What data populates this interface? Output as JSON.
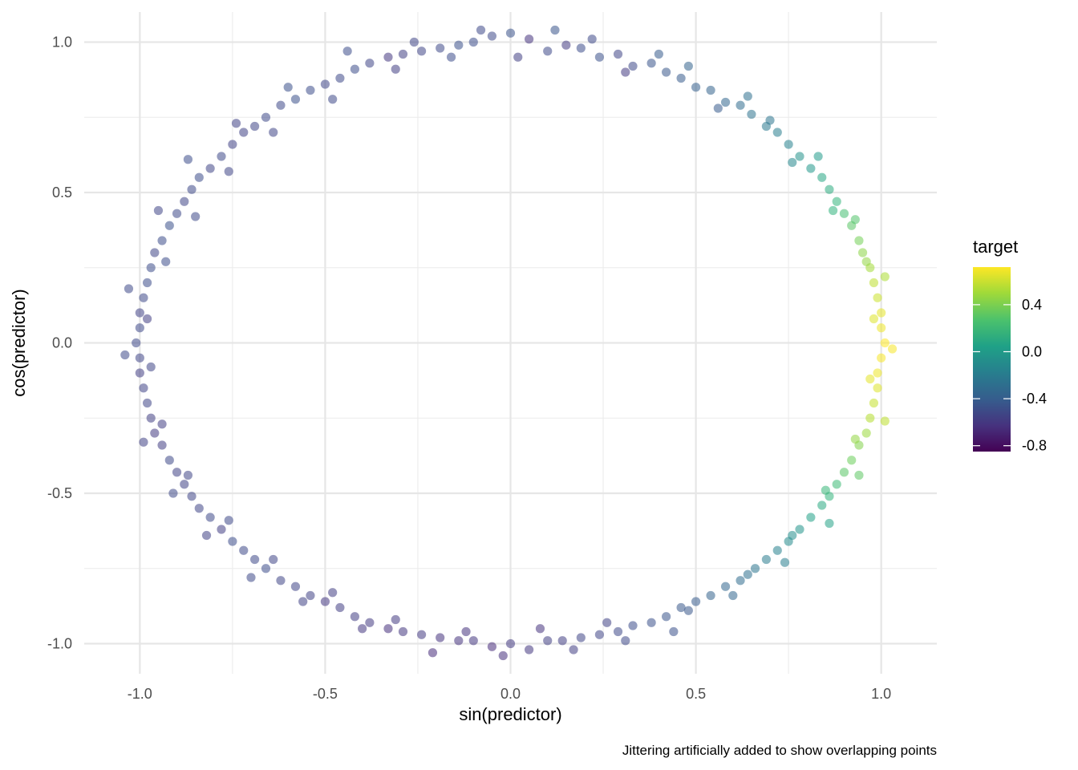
{
  "chart_data": {
    "type": "scatter",
    "title": "",
    "xlabel": "sin(predictor)",
    "ylabel": "cos(predictor)",
    "caption": "Jittering artificially added to show overlapping points",
    "xlim": [
      -1.15,
      1.15
    ],
    "ylim": [
      -1.1,
      1.1
    ],
    "x_ticks": [
      -1.0,
      -0.5,
      0.0,
      0.5,
      1.0
    ],
    "x_tick_labels": [
      "-1.0",
      "-0.5",
      "0.0",
      "0.5",
      "1.0"
    ],
    "y_ticks": [
      -1.0,
      -0.5,
      0.0,
      0.5,
      1.0
    ],
    "y_tick_labels": [
      "-1.0",
      "-0.5",
      "0.0",
      "0.5",
      "1.0"
    ],
    "grid": true,
    "point_opacity": 0.55,
    "color_variable": {
      "name": "target",
      "palette": "viridis",
      "range": [
        -0.85,
        0.72
      ],
      "ticks": [
        0.4,
        0.0,
        -0.4,
        -0.8
      ],
      "tick_labels": [
        "0.4",
        "0.0",
        "-0.4",
        "-0.8"
      ],
      "legend_position": "right"
    },
    "points": [
      {
        "x": 0.0,
        "y": 1.03,
        "c": -0.45
      },
      {
        "x": 0.1,
        "y": 0.97,
        "c": -0.5
      },
      {
        "x": 0.19,
        "y": 0.98,
        "c": -0.48
      },
      {
        "x": 0.29,
        "y": 0.96,
        "c": -0.52
      },
      {
        "x": 0.38,
        "y": 0.93,
        "c": -0.44
      },
      {
        "x": 0.46,
        "y": 0.88,
        "c": -0.4
      },
      {
        "x": 0.54,
        "y": 0.84,
        "c": -0.36
      },
      {
        "x": 0.62,
        "y": 0.79,
        "c": -0.3
      },
      {
        "x": 0.69,
        "y": 0.72,
        "c": -0.22
      },
      {
        "x": 0.75,
        "y": 0.66,
        "c": -0.15
      },
      {
        "x": 0.81,
        "y": 0.58,
        "c": -0.02
      },
      {
        "x": 0.86,
        "y": 0.51,
        "c": 0.12
      },
      {
        "x": 0.9,
        "y": 0.43,
        "c": 0.24
      },
      {
        "x": 0.94,
        "y": 0.34,
        "c": 0.38
      },
      {
        "x": 0.97,
        "y": 0.25,
        "c": 0.5
      },
      {
        "x": 0.99,
        "y": 0.15,
        "c": 0.6
      },
      {
        "x": 1.0,
        "y": 0.05,
        "c": 0.68
      },
      {
        "x": 1.0,
        "y": -0.05,
        "c": 0.7
      },
      {
        "x": 0.99,
        "y": -0.15,
        "c": 0.64
      },
      {
        "x": 0.97,
        "y": -0.25,
        "c": 0.54
      },
      {
        "x": 0.94,
        "y": -0.34,
        "c": 0.42
      },
      {
        "x": 0.9,
        "y": -0.43,
        "c": 0.3
      },
      {
        "x": 0.86,
        "y": -0.51,
        "c": 0.18
      },
      {
        "x": 0.81,
        "y": -0.58,
        "c": 0.04
      },
      {
        "x": 0.75,
        "y": -0.66,
        "c": -0.1
      },
      {
        "x": 0.69,
        "y": -0.72,
        "c": -0.2
      },
      {
        "x": 0.62,
        "y": -0.79,
        "c": -0.3
      },
      {
        "x": 0.54,
        "y": -0.84,
        "c": -0.36
      },
      {
        "x": 0.46,
        "y": -0.88,
        "c": -0.42
      },
      {
        "x": 0.38,
        "y": -0.93,
        "c": -0.46
      },
      {
        "x": 0.29,
        "y": -0.96,
        "c": -0.5
      },
      {
        "x": 0.19,
        "y": -0.98,
        "c": -0.52
      },
      {
        "x": 0.1,
        "y": -0.99,
        "c": -0.55
      },
      {
        "x": 0.0,
        "y": -1.0,
        "c": -0.58
      },
      {
        "x": -0.1,
        "y": -0.99,
        "c": -0.6
      },
      {
        "x": -0.19,
        "y": -0.98,
        "c": -0.62
      },
      {
        "x": -0.29,
        "y": -0.96,
        "c": -0.6
      },
      {
        "x": -0.38,
        "y": -0.93,
        "c": -0.58
      },
      {
        "x": -0.46,
        "y": -0.88,
        "c": -0.56
      },
      {
        "x": -0.54,
        "y": -0.84,
        "c": -0.54
      },
      {
        "x": -0.62,
        "y": -0.79,
        "c": -0.52
      },
      {
        "x": -0.69,
        "y": -0.72,
        "c": -0.5
      },
      {
        "x": -0.75,
        "y": -0.66,
        "c": -0.48
      },
      {
        "x": -0.81,
        "y": -0.58,
        "c": -0.5
      },
      {
        "x": -0.86,
        "y": -0.51,
        "c": -0.52
      },
      {
        "x": -0.9,
        "y": -0.43,
        "c": -0.54
      },
      {
        "x": -0.94,
        "y": -0.34,
        "c": -0.56
      },
      {
        "x": -0.97,
        "y": -0.25,
        "c": -0.55
      },
      {
        "x": -0.99,
        "y": -0.15,
        "c": -0.53
      },
      {
        "x": -1.0,
        "y": -0.05,
        "c": -0.52
      },
      {
        "x": -1.0,
        "y": 0.05,
        "c": -0.5
      },
      {
        "x": -0.99,
        "y": 0.15,
        "c": -0.5
      },
      {
        "x": -0.97,
        "y": 0.25,
        "c": -0.48
      },
      {
        "x": -0.94,
        "y": 0.34,
        "c": -0.48
      },
      {
        "x": -0.9,
        "y": 0.43,
        "c": -0.5
      },
      {
        "x": -0.86,
        "y": 0.51,
        "c": -0.5
      },
      {
        "x": -0.81,
        "y": 0.58,
        "c": -0.52
      },
      {
        "x": -0.75,
        "y": 0.66,
        "c": -0.54
      },
      {
        "x": -0.69,
        "y": 0.72,
        "c": -0.52
      },
      {
        "x": -0.62,
        "y": 0.79,
        "c": -0.5
      },
      {
        "x": -0.54,
        "y": 0.84,
        "c": -0.48
      },
      {
        "x": -0.46,
        "y": 0.88,
        "c": -0.5
      },
      {
        "x": -0.38,
        "y": 0.93,
        "c": -0.52
      },
      {
        "x": -0.29,
        "y": 0.96,
        "c": -0.55
      },
      {
        "x": -0.19,
        "y": 0.98,
        "c": -0.5
      },
      {
        "x": -0.1,
        "y": 1.0,
        "c": -0.48
      },
      {
        "x": 0.05,
        "y": 1.01,
        "c": -0.62
      },
      {
        "x": 0.15,
        "y": 0.99,
        "c": -0.58
      },
      {
        "x": 0.24,
        "y": 0.95,
        "c": -0.46
      },
      {
        "x": 0.33,
        "y": 0.92,
        "c": -0.5
      },
      {
        "x": 0.42,
        "y": 0.9,
        "c": -0.42
      },
      {
        "x": 0.5,
        "y": 0.85,
        "c": -0.38
      },
      {
        "x": 0.58,
        "y": 0.8,
        "c": -0.34
      },
      {
        "x": 0.65,
        "y": 0.76,
        "c": -0.26
      },
      {
        "x": 0.72,
        "y": 0.7,
        "c": -0.18
      },
      {
        "x": 0.78,
        "y": 0.62,
        "c": -0.06
      },
      {
        "x": 0.84,
        "y": 0.55,
        "c": 0.08
      },
      {
        "x": 0.88,
        "y": 0.47,
        "c": 0.18
      },
      {
        "x": 0.92,
        "y": 0.39,
        "c": 0.3
      },
      {
        "x": 0.95,
        "y": 0.3,
        "c": 0.44
      },
      {
        "x": 0.98,
        "y": 0.2,
        "c": 0.56
      },
      {
        "x": 1.0,
        "y": 0.1,
        "c": 0.66
      },
      {
        "x": 1.01,
        "y": 0.0,
        "c": 0.72
      },
      {
        "x": 0.99,
        "y": -0.1,
        "c": 0.68
      },
      {
        "x": 0.98,
        "y": -0.2,
        "c": 0.58
      },
      {
        "x": 0.96,
        "y": -0.3,
        "c": 0.48
      },
      {
        "x": 0.92,
        "y": -0.39,
        "c": 0.36
      },
      {
        "x": 0.88,
        "y": -0.47,
        "c": 0.22
      },
      {
        "x": 0.84,
        "y": -0.54,
        "c": 0.1
      },
      {
        "x": 0.78,
        "y": -0.62,
        "c": -0.04
      },
      {
        "x": 0.72,
        "y": -0.69,
        "c": -0.16
      },
      {
        "x": 0.66,
        "y": -0.75,
        "c": -0.24
      },
      {
        "x": 0.58,
        "y": -0.81,
        "c": -0.34
      },
      {
        "x": 0.5,
        "y": -0.86,
        "c": -0.4
      },
      {
        "x": 0.42,
        "y": -0.91,
        "c": -0.44
      },
      {
        "x": 0.33,
        "y": -0.94,
        "c": -0.48
      },
      {
        "x": 0.24,
        "y": -0.97,
        "c": -0.52
      },
      {
        "x": 0.14,
        "y": -0.99,
        "c": -0.56
      },
      {
        "x": 0.05,
        "y": -1.02,
        "c": -0.6
      },
      {
        "x": -0.05,
        "y": -1.01,
        "c": -0.66
      },
      {
        "x": -0.14,
        "y": -0.99,
        "c": -0.62
      },
      {
        "x": -0.24,
        "y": -0.97,
        "c": -0.58
      },
      {
        "x": -0.33,
        "y": -0.95,
        "c": -0.64
      },
      {
        "x": -0.42,
        "y": -0.91,
        "c": -0.56
      },
      {
        "x": -0.5,
        "y": -0.86,
        "c": -0.6
      },
      {
        "x": -0.58,
        "y": -0.81,
        "c": -0.52
      },
      {
        "x": -0.66,
        "y": -0.75,
        "c": -0.48
      },
      {
        "x": -0.72,
        "y": -0.69,
        "c": -0.5
      },
      {
        "x": -0.78,
        "y": -0.62,
        "c": -0.56
      },
      {
        "x": -0.84,
        "y": -0.55,
        "c": -0.52
      },
      {
        "x": -0.88,
        "y": -0.47,
        "c": -0.54
      },
      {
        "x": -0.92,
        "y": -0.39,
        "c": -0.5
      },
      {
        "x": -0.96,
        "y": -0.3,
        "c": -0.58
      },
      {
        "x": -0.98,
        "y": -0.2,
        "c": -0.52
      },
      {
        "x": -1.0,
        "y": -0.1,
        "c": -0.56
      },
      {
        "x": -1.01,
        "y": 0.0,
        "c": -0.5
      },
      {
        "x": -1.0,
        "y": 0.1,
        "c": -0.54
      },
      {
        "x": -0.98,
        "y": 0.2,
        "c": -0.48
      },
      {
        "x": -0.96,
        "y": 0.3,
        "c": -0.52
      },
      {
        "x": -0.92,
        "y": 0.39,
        "c": -0.46
      },
      {
        "x": -0.88,
        "y": 0.47,
        "c": -0.52
      },
      {
        "x": -0.84,
        "y": 0.55,
        "c": -0.48
      },
      {
        "x": -0.78,
        "y": 0.62,
        "c": -0.5
      },
      {
        "x": -0.72,
        "y": 0.7,
        "c": -0.54
      },
      {
        "x": -0.66,
        "y": 0.75,
        "c": -0.5
      },
      {
        "x": -0.58,
        "y": 0.81,
        "c": -0.46
      },
      {
        "x": -0.5,
        "y": 0.86,
        "c": -0.52
      },
      {
        "x": -0.42,
        "y": 0.91,
        "c": -0.48
      },
      {
        "x": -0.33,
        "y": 0.95,
        "c": -0.6
      },
      {
        "x": -0.24,
        "y": 0.97,
        "c": -0.52
      },
      {
        "x": -0.14,
        "y": 0.99,
        "c": -0.46
      },
      {
        "x": -0.05,
        "y": 1.02,
        "c": -0.5
      },
      {
        "x": 0.02,
        "y": 0.95,
        "c": -0.55
      },
      {
        "x": 0.12,
        "y": 1.04,
        "c": -0.44
      },
      {
        "x": 0.22,
        "y": 1.01,
        "c": -0.5
      },
      {
        "x": 0.31,
        "y": 0.9,
        "c": -0.58
      },
      {
        "x": 0.4,
        "y": 0.96,
        "c": -0.4
      },
      {
        "x": 0.48,
        "y": 0.92,
        "c": -0.36
      },
      {
        "x": 0.56,
        "y": 0.78,
        "c": -0.4
      },
      {
        "x": 0.64,
        "y": 0.82,
        "c": -0.28
      },
      {
        "x": 0.7,
        "y": 0.74,
        "c": -0.24
      },
      {
        "x": 0.76,
        "y": 0.6,
        "c": -0.12
      },
      {
        "x": 0.83,
        "y": 0.62,
        "c": 0.0
      },
      {
        "x": 0.87,
        "y": 0.44,
        "c": 0.16
      },
      {
        "x": 0.93,
        "y": 0.41,
        "c": 0.28
      },
      {
        "x": 0.96,
        "y": 0.27,
        "c": 0.46
      },
      {
        "x": 1.01,
        "y": 0.22,
        "c": 0.52
      },
      {
        "x": 0.98,
        "y": 0.08,
        "c": 0.64
      },
      {
        "x": 1.03,
        "y": -0.02,
        "c": 0.7
      },
      {
        "x": 0.97,
        "y": -0.12,
        "c": 0.66
      },
      {
        "x": 1.01,
        "y": -0.26,
        "c": 0.56
      },
      {
        "x": 0.93,
        "y": -0.32,
        "c": 0.46
      },
      {
        "x": 0.94,
        "y": -0.44,
        "c": 0.32
      },
      {
        "x": 0.85,
        "y": -0.49,
        "c": 0.2
      },
      {
        "x": 0.86,
        "y": -0.6,
        "c": 0.06
      },
      {
        "x": 0.76,
        "y": -0.64,
        "c": -0.08
      },
      {
        "x": 0.74,
        "y": -0.73,
        "c": -0.18
      },
      {
        "x": 0.64,
        "y": -0.77,
        "c": -0.28
      },
      {
        "x": 0.6,
        "y": -0.84,
        "c": -0.34
      },
      {
        "x": 0.48,
        "y": -0.89,
        "c": -0.42
      },
      {
        "x": 0.44,
        "y": -0.96,
        "c": -0.46
      },
      {
        "x": 0.31,
        "y": -0.99,
        "c": -0.5
      },
      {
        "x": 0.26,
        "y": -0.93,
        "c": -0.54
      },
      {
        "x": 0.17,
        "y": -1.02,
        "c": -0.56
      },
      {
        "x": 0.08,
        "y": -0.95,
        "c": -0.62
      },
      {
        "x": -0.02,
        "y": -1.04,
        "c": -0.64
      },
      {
        "x": -0.12,
        "y": -0.96,
        "c": -0.62
      },
      {
        "x": -0.21,
        "y": -1.03,
        "c": -0.66
      },
      {
        "x": -0.31,
        "y": -0.92,
        "c": -0.58
      },
      {
        "x": -0.4,
        "y": -0.95,
        "c": -0.6
      },
      {
        "x": -0.48,
        "y": -0.83,
        "c": -0.56
      },
      {
        "x": -0.56,
        "y": -0.86,
        "c": -0.54
      },
      {
        "x": -0.64,
        "y": -0.72,
        "c": -0.52
      },
      {
        "x": -0.7,
        "y": -0.78,
        "c": -0.5
      },
      {
        "x": -0.76,
        "y": -0.59,
        "c": -0.5
      },
      {
        "x": -0.82,
        "y": -0.64,
        "c": -0.54
      },
      {
        "x": -0.87,
        "y": -0.44,
        "c": -0.52
      },
      {
        "x": -0.91,
        "y": -0.5,
        "c": -0.5
      },
      {
        "x": -0.94,
        "y": -0.27,
        "c": -0.56
      },
      {
        "x": -0.99,
        "y": -0.33,
        "c": -0.54
      },
      {
        "x": -0.97,
        "y": -0.08,
        "c": -0.52
      },
      {
        "x": -1.04,
        "y": -0.04,
        "c": -0.5
      },
      {
        "x": -0.98,
        "y": 0.08,
        "c": -0.56
      },
      {
        "x": -1.03,
        "y": 0.18,
        "c": -0.5
      },
      {
        "x": -0.93,
        "y": 0.27,
        "c": -0.48
      },
      {
        "x": -0.95,
        "y": 0.44,
        "c": -0.52
      },
      {
        "x": -0.85,
        "y": 0.42,
        "c": -0.5
      },
      {
        "x": -0.87,
        "y": 0.61,
        "c": -0.48
      },
      {
        "x": -0.76,
        "y": 0.57,
        "c": -0.52
      },
      {
        "x": -0.74,
        "y": 0.73,
        "c": -0.54
      },
      {
        "x": -0.64,
        "y": 0.7,
        "c": -0.52
      },
      {
        "x": -0.6,
        "y": 0.85,
        "c": -0.46
      },
      {
        "x": -0.48,
        "y": 0.81,
        "c": -0.5
      },
      {
        "x": -0.44,
        "y": 0.97,
        "c": -0.48
      },
      {
        "x": -0.31,
        "y": 0.91,
        "c": -0.56
      },
      {
        "x": -0.26,
        "y": 1.0,
        "c": -0.52
      },
      {
        "x": -0.16,
        "y": 0.95,
        "c": -0.48
      },
      {
        "x": -0.08,
        "y": 1.04,
        "c": -0.5
      }
    ]
  }
}
